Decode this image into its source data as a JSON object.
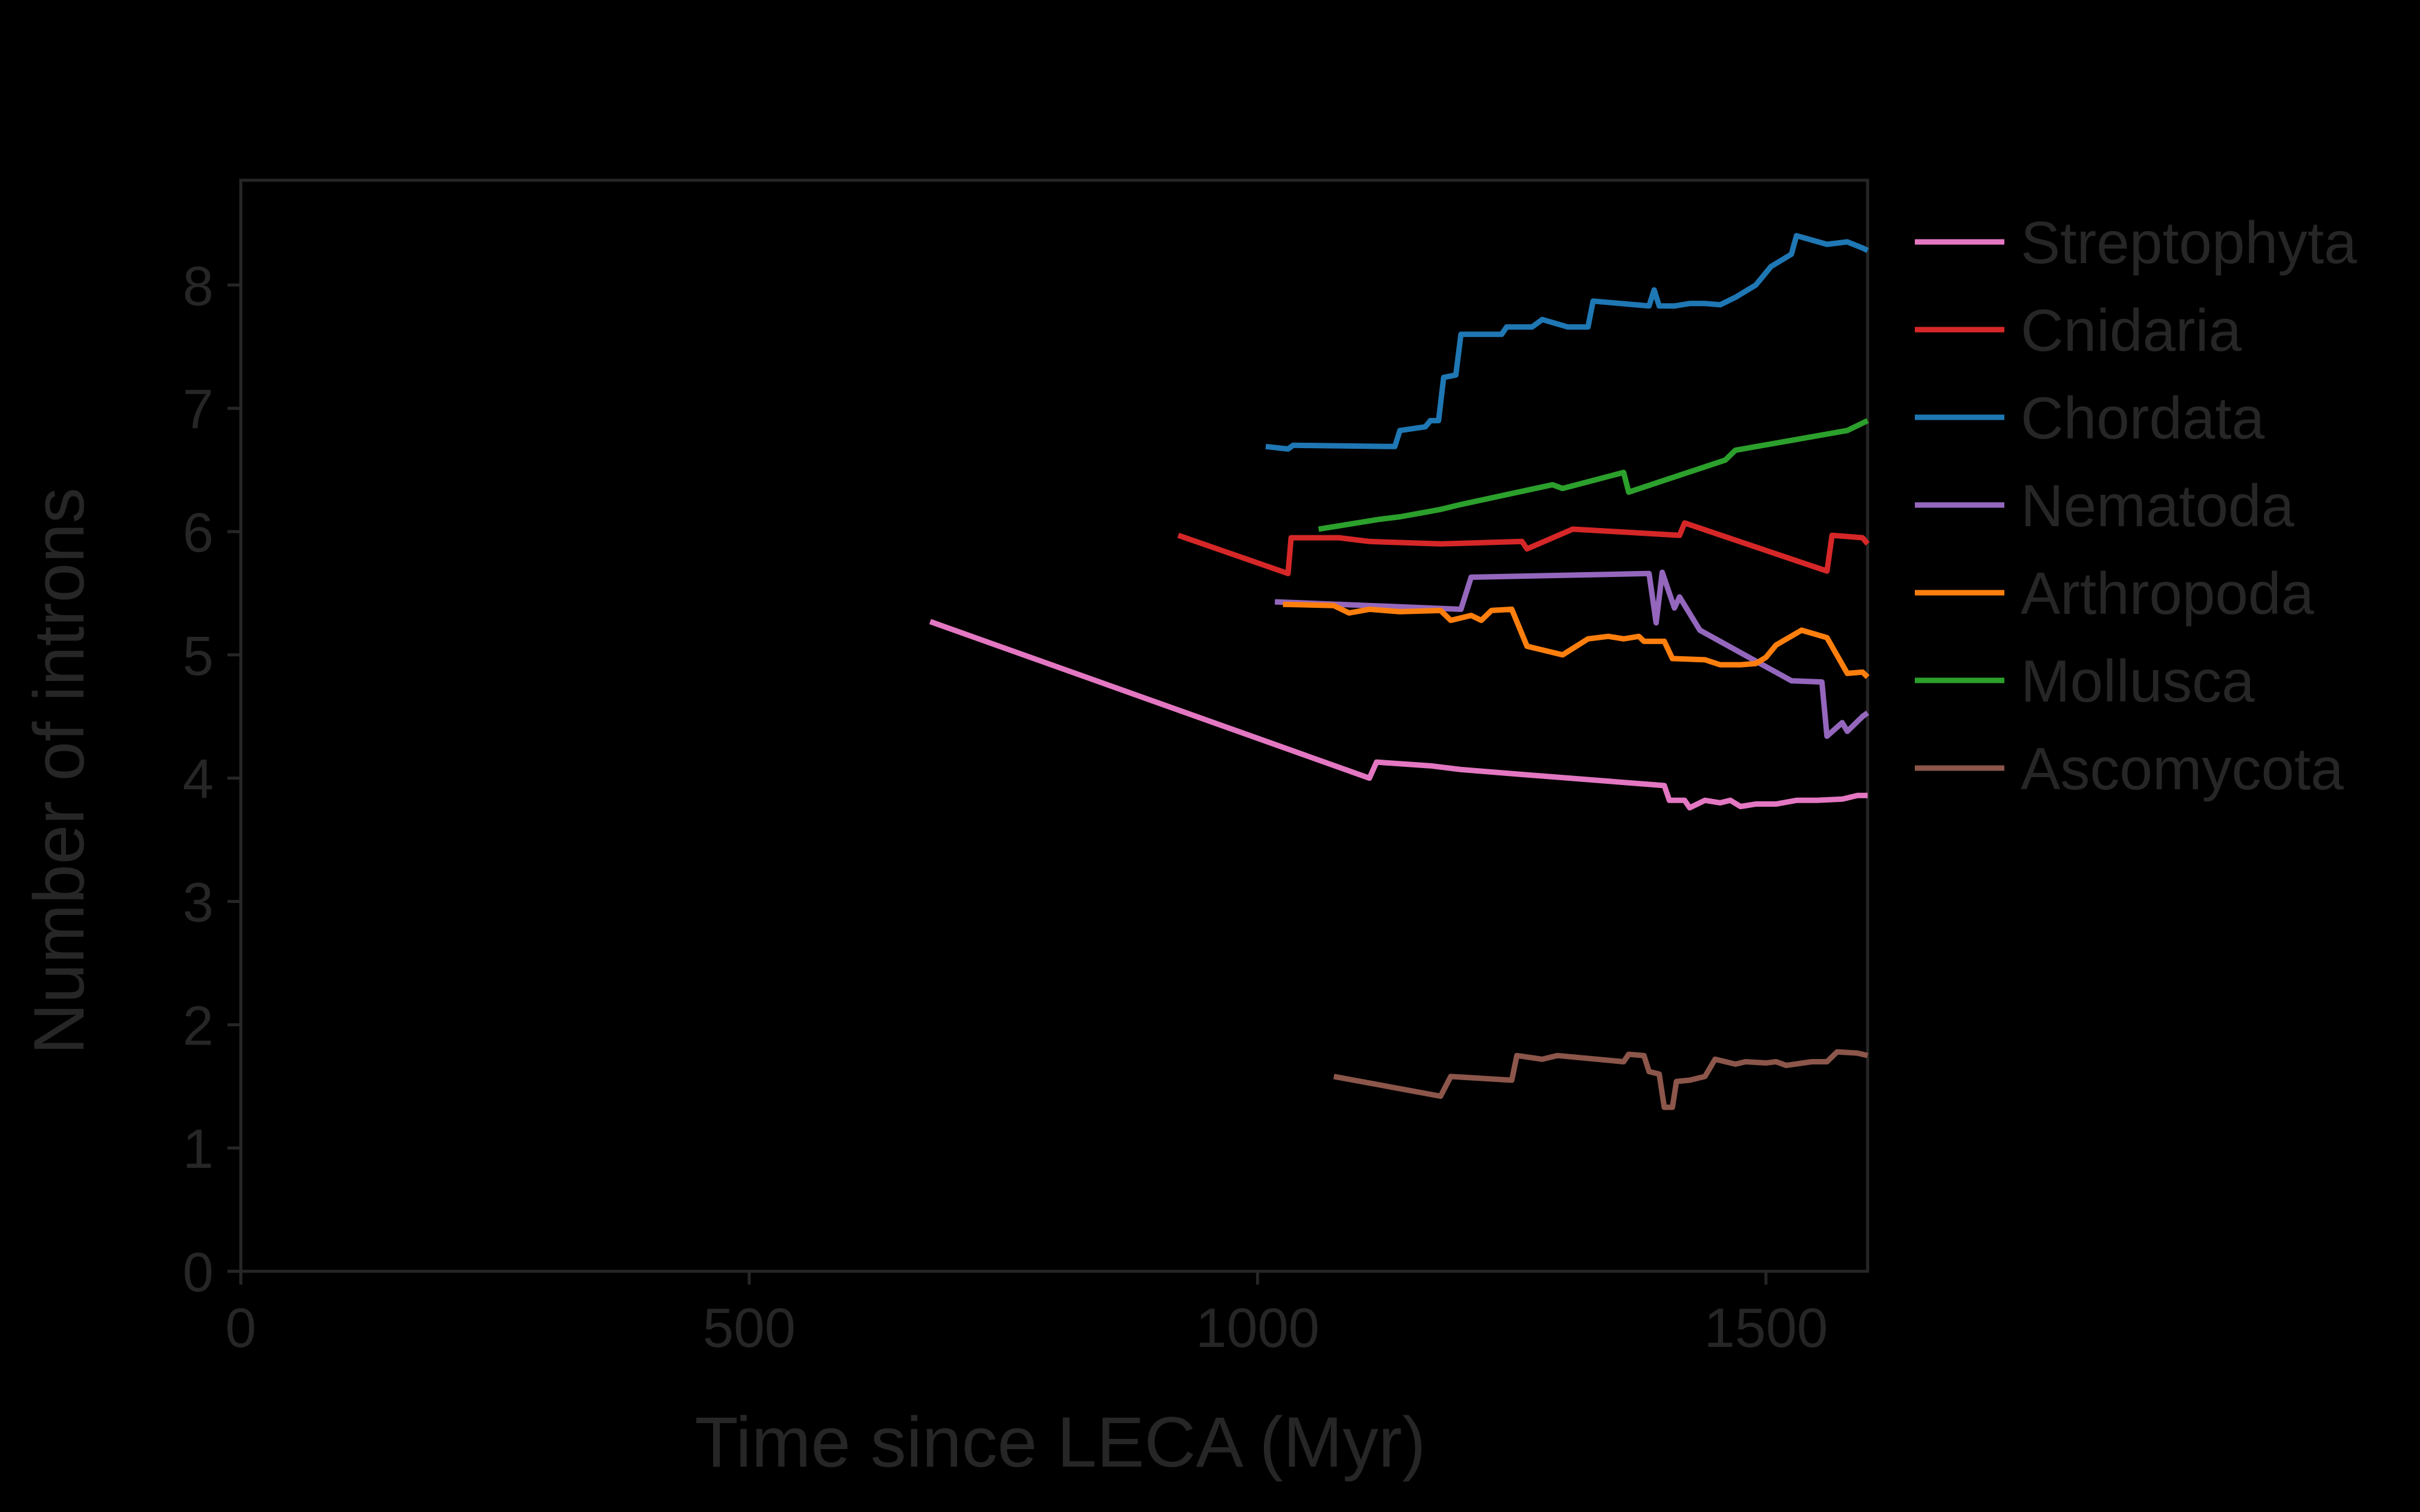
{
  "chart_data": {
    "type": "line",
    "title": "",
    "xlabel": "Time since LECA (Myr)",
    "ylabel": "Number of introns",
    "xlim": [
      0,
      1600
    ],
    "ylim": [
      0,
      8.85
    ],
    "x_ticks": [
      0,
      500,
      1000,
      1500
    ],
    "y_ticks": [
      0,
      1,
      2,
      3,
      4,
      5,
      6,
      7,
      8
    ],
    "grid": false,
    "legend_position": "right",
    "axis_color": "#262626",
    "text_color": "#262626",
    "background": "#000000",
    "series": [
      {
        "name": "Streptophyta",
        "color": "#e377c2",
        "points": [
          [
            678,
            5.27
          ],
          [
            1110,
            4.0
          ],
          [
            1117,
            4.13
          ],
          [
            1170,
            4.1
          ],
          [
            1200,
            4.07
          ],
          [
            1260,
            4.03
          ],
          [
            1400,
            3.94
          ],
          [
            1405,
            3.82
          ],
          [
            1420,
            3.82
          ],
          [
            1425,
            3.76
          ],
          [
            1440,
            3.82
          ],
          [
            1455,
            3.8
          ],
          [
            1465,
            3.82
          ],
          [
            1475,
            3.77
          ],
          [
            1490,
            3.79
          ],
          [
            1510,
            3.79
          ],
          [
            1530,
            3.82
          ],
          [
            1550,
            3.82
          ],
          [
            1575,
            3.83
          ],
          [
            1590,
            3.86
          ],
          [
            1600,
            3.86
          ]
        ]
      },
      {
        "name": "Cnidaria",
        "color": "#d62728",
        "points": [
          [
            922,
            5.97
          ],
          [
            1030,
            5.66
          ],
          [
            1033,
            5.95
          ],
          [
            1080,
            5.95
          ],
          [
            1110,
            5.92
          ],
          [
            1180,
            5.9
          ],
          [
            1260,
            5.92
          ],
          [
            1265,
            5.86
          ],
          [
            1310,
            6.02
          ],
          [
            1415,
            5.97
          ],
          [
            1420,
            6.07
          ],
          [
            1560,
            5.68
          ],
          [
            1565,
            5.97
          ],
          [
            1595,
            5.95
          ],
          [
            1600,
            5.9
          ]
        ]
      },
      {
        "name": "Chordata",
        "color": "#1f77b4",
        "points": [
          [
            1008,
            6.69
          ],
          [
            1030,
            6.67
          ],
          [
            1035,
            6.7
          ],
          [
            1135,
            6.69
          ],
          [
            1140,
            6.82
          ],
          [
            1165,
            6.85
          ],
          [
            1170,
            6.9
          ],
          [
            1178,
            6.9
          ],
          [
            1183,
            7.25
          ],
          [
            1195,
            7.27
          ],
          [
            1200,
            7.6
          ],
          [
            1240,
            7.6
          ],
          [
            1245,
            7.66
          ],
          [
            1270,
            7.66
          ],
          [
            1280,
            7.72
          ],
          [
            1305,
            7.66
          ],
          [
            1325,
            7.66
          ],
          [
            1330,
            7.87
          ],
          [
            1385,
            7.83
          ],
          [
            1390,
            7.96
          ],
          [
            1395,
            7.83
          ],
          [
            1410,
            7.83
          ],
          [
            1425,
            7.85
          ],
          [
            1440,
            7.85
          ],
          [
            1455,
            7.84
          ],
          [
            1470,
            7.9
          ],
          [
            1490,
            8.0
          ],
          [
            1505,
            8.15
          ],
          [
            1525,
            8.25
          ],
          [
            1530,
            8.4
          ],
          [
            1560,
            8.33
          ],
          [
            1580,
            8.35
          ],
          [
            1595,
            8.3
          ],
          [
            1600,
            8.28
          ]
        ]
      },
      {
        "name": "Nematoda",
        "color": "#9467bd",
        "points": [
          [
            1017,
            5.43
          ],
          [
            1050,
            5.42
          ],
          [
            1200,
            5.37
          ],
          [
            1210,
            5.63
          ],
          [
            1385,
            5.66
          ],
          [
            1392,
            5.26
          ],
          [
            1398,
            5.67
          ],
          [
            1405,
            5.5
          ],
          [
            1410,
            5.38
          ],
          [
            1415,
            5.47
          ],
          [
            1435,
            5.2
          ],
          [
            1525,
            4.79
          ],
          [
            1555,
            4.78
          ],
          [
            1560,
            4.34
          ],
          [
            1575,
            4.45
          ],
          [
            1580,
            4.38
          ],
          [
            1595,
            4.5
          ],
          [
            1600,
            4.53
          ]
        ]
      },
      {
        "name": "Arthropoda",
        "color": "#ff7f0e",
        "points": [
          [
            1025,
            5.41
          ],
          [
            1075,
            5.4
          ],
          [
            1090,
            5.34
          ],
          [
            1110,
            5.37
          ],
          [
            1140,
            5.35
          ],
          [
            1180,
            5.36
          ],
          [
            1190,
            5.28
          ],
          [
            1210,
            5.32
          ],
          [
            1220,
            5.28
          ],
          [
            1230,
            5.36
          ],
          [
            1250,
            5.37
          ],
          [
            1265,
            5.07
          ],
          [
            1300,
            5.0
          ],
          [
            1325,
            5.13
          ],
          [
            1345,
            5.15
          ],
          [
            1360,
            5.13
          ],
          [
            1375,
            5.15
          ],
          [
            1380,
            5.11
          ],
          [
            1400,
            5.11
          ],
          [
            1408,
            4.97
          ],
          [
            1440,
            4.96
          ],
          [
            1455,
            4.92
          ],
          [
            1475,
            4.92
          ],
          [
            1490,
            4.93
          ],
          [
            1500,
            4.98
          ],
          [
            1510,
            5.08
          ],
          [
            1535,
            5.2
          ],
          [
            1560,
            5.14
          ],
          [
            1580,
            4.85
          ],
          [
            1595,
            4.86
          ],
          [
            1600,
            4.82
          ]
        ]
      },
      {
        "name": "Mollusca",
        "color": "#2ca02c",
        "points": [
          [
            1060,
            6.02
          ],
          [
            1120,
            6.1
          ],
          [
            1140,
            6.12
          ],
          [
            1160,
            6.15
          ],
          [
            1180,
            6.18
          ],
          [
            1200,
            6.22
          ],
          [
            1290,
            6.38
          ],
          [
            1300,
            6.35
          ],
          [
            1360,
            6.48
          ],
          [
            1365,
            6.32
          ],
          [
            1460,
            6.58
          ],
          [
            1470,
            6.66
          ],
          [
            1580,
            6.82
          ],
          [
            1600,
            6.9
          ]
        ]
      },
      {
        "name": "Ascomycota",
        "color": "#8c564b",
        "points": [
          [
            1075,
            1.58
          ],
          [
            1180,
            1.42
          ],
          [
            1190,
            1.58
          ],
          [
            1250,
            1.55
          ],
          [
            1255,
            1.75
          ],
          [
            1280,
            1.72
          ],
          [
            1295,
            1.75
          ],
          [
            1360,
            1.7
          ],
          [
            1365,
            1.76
          ],
          [
            1380,
            1.75
          ],
          [
            1385,
            1.62
          ],
          [
            1395,
            1.6
          ],
          [
            1400,
            1.33
          ],
          [
            1408,
            1.33
          ],
          [
            1412,
            1.54
          ],
          [
            1425,
            1.55
          ],
          [
            1440,
            1.58
          ],
          [
            1450,
            1.72
          ],
          [
            1470,
            1.68
          ],
          [
            1480,
            1.7
          ],
          [
            1500,
            1.69
          ],
          [
            1510,
            1.7
          ],
          [
            1520,
            1.67
          ],
          [
            1545,
            1.7
          ],
          [
            1560,
            1.7
          ],
          [
            1570,
            1.78
          ],
          [
            1590,
            1.77
          ],
          [
            1600,
            1.75
          ]
        ]
      }
    ]
  }
}
